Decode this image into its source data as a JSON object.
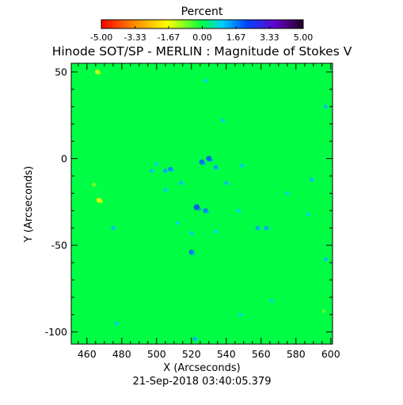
{
  "chart_data": {
    "type": "heatmap",
    "title": "Hinode SOT/SP - MERLIN : Magnitude of Stokes V",
    "colorbar": {
      "label": "Percent",
      "range": [
        -5.0,
        5.0
      ],
      "tick_labels": [
        "-5.00",
        "-3.33",
        "-1.67",
        "0.00",
        "1.67",
        "3.33",
        "5.00"
      ],
      "tick_values": [
        -5.0,
        -3.33,
        -1.67,
        0.0,
        1.67,
        3.33,
        5.0
      ],
      "colors": [
        "#ff0000",
        "#ff8800",
        "#ffff00",
        "#00ff44",
        "#00ccff",
        "#0044ff",
        "#6600cc",
        "#220022"
      ]
    },
    "xlabel": "X (Arcseconds)",
    "ylabel": "Y (Arcseconds)",
    "xlim": [
      451,
      601
    ],
    "ylim": [
      -107,
      55
    ],
    "xticks": [
      460,
      480,
      500,
      520,
      540,
      560,
      580,
      600
    ],
    "xtick_labels": [
      "460",
      "480",
      "500",
      "520",
      "540",
      "560",
      "580",
      "600"
    ],
    "yticks": [
      50,
      0,
      -50,
      -100
    ],
    "ytick_labels": [
      "50",
      "0",
      "-50",
      "-100"
    ],
    "background_value": 0.0,
    "features": [
      {
        "x": 466,
        "y": 50,
        "value": -1.6
      },
      {
        "x": 467,
        "y": -24,
        "value": -1.9
      },
      {
        "x": 464,
        "y": -15,
        "value": -1.0
      },
      {
        "x": 526,
        "y": -2,
        "value": 2.0
      },
      {
        "x": 530,
        "y": 0,
        "value": 2.1
      },
      {
        "x": 523,
        "y": -28,
        "value": 2.3
      },
      {
        "x": 528,
        "y": -30,
        "value": 1.8
      },
      {
        "x": 520,
        "y": -54,
        "value": 1.9
      },
      {
        "x": 505,
        "y": -7,
        "value": 1.4
      },
      {
        "x": 508,
        "y": -6,
        "value": 1.7
      },
      {
        "x": 497,
        "y": -7,
        "value": 1.2
      },
      {
        "x": 540,
        "y": -14,
        "value": 1.2
      },
      {
        "x": 558,
        "y": -40,
        "value": 1.4
      },
      {
        "x": 563,
        "y": -40,
        "value": 1.4
      },
      {
        "x": 522,
        "y": -104,
        "value": 1.3
      },
      {
        "x": 534,
        "y": -5,
        "value": 1.5
      },
      {
        "x": 549,
        "y": -4,
        "value": 1.1
      },
      {
        "x": 589,
        "y": -12,
        "value": 1.2
      },
      {
        "x": 597,
        "y": 30,
        "value": 1.2
      },
      {
        "x": 538,
        "y": 22,
        "value": 1.1
      },
      {
        "x": 528,
        "y": 45,
        "value": 1.0
      },
      {
        "x": 475,
        "y": -40,
        "value": 1.2
      },
      {
        "x": 505,
        "y": -18,
        "value": 1.1
      },
      {
        "x": 514,
        "y": -14,
        "value": 1.2
      },
      {
        "x": 500,
        "y": -3,
        "value": 1.0
      },
      {
        "x": 547,
        "y": -30,
        "value": 1.0
      },
      {
        "x": 520,
        "y": -43,
        "value": 1.1
      },
      {
        "x": 575,
        "y": -20,
        "value": 1.0
      },
      {
        "x": 587,
        "y": -32,
        "value": 1.0
      },
      {
        "x": 477,
        "y": -95,
        "value": 1.1
      },
      {
        "x": 548,
        "y": -90,
        "value": 1.0
      },
      {
        "x": 566,
        "y": -82,
        "value": 1.0
      },
      {
        "x": 597,
        "y": -58,
        "value": 1.2
      },
      {
        "x": 596,
        "y": -88,
        "value": -0.8
      },
      {
        "x": 512,
        "y": -37,
        "value": 1.0
      },
      {
        "x": 534,
        "y": -42,
        "value": 1.0
      }
    ]
  },
  "timestamp": "21-Sep-2018 03:40:05.379"
}
